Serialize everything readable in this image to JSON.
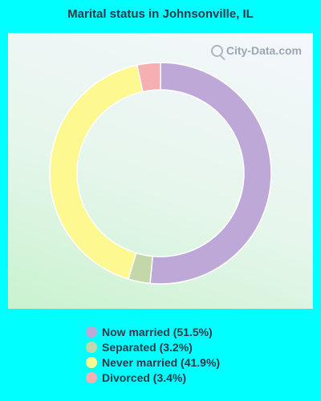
{
  "watermark": "City-Data.com",
  "chart_data": {
    "type": "pie",
    "style": "donut",
    "title": "Marital status in Johnsonville, IL",
    "slices": [
      {
        "label": "Now married (51.5%)",
        "value": 51.5,
        "color": "#bea8d8"
      },
      {
        "label": "Separated (3.2%)",
        "value": 3.2,
        "color": "#c4d7a8"
      },
      {
        "label": "Never married (41.9%)",
        "value": 41.9,
        "color": "#fdf990"
      },
      {
        "label": "Divorced (3.4%)",
        "value": 3.4,
        "color": "#f7b0b1"
      }
    ],
    "legend_position": "bottom"
  }
}
